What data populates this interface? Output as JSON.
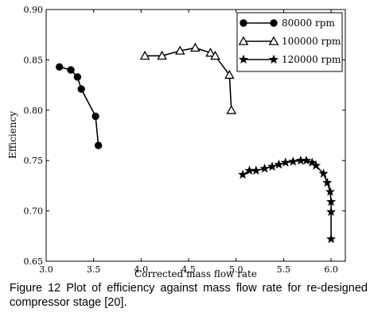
{
  "chart_data": {
    "type": "line",
    "title": "",
    "xlabel": "Corrected mass flow rate",
    "ylabel": "Efficiency",
    "xlim": [
      3.0,
      6.15
    ],
    "ylim": [
      0.65,
      0.9
    ],
    "xticks": [
      "3.0",
      "3.5",
      "4.0",
      "4.5",
      "5.0",
      "5.5",
      "6.0"
    ],
    "yticks": [
      "0.65",
      "0.70",
      "0.75",
      "0.80",
      "0.85",
      "0.90"
    ],
    "grid": false,
    "legend_position": "top-right",
    "series": [
      {
        "name": "80000 rpm",
        "marker": "circle",
        "x": [
          3.14,
          3.26,
          3.33,
          3.37,
          3.52,
          3.55
        ],
        "y": [
          0.843,
          0.84,
          0.833,
          0.821,
          0.794,
          0.765
        ]
      },
      {
        "name": "100000 rpm",
        "marker": "triangle",
        "x": [
          4.04,
          4.22,
          4.41,
          4.57,
          4.73,
          4.78,
          4.93,
          4.95
        ],
        "y": [
          0.854,
          0.854,
          0.859,
          0.862,
          0.857,
          0.854,
          0.835,
          0.8
        ]
      },
      {
        "name": "120000 rpm",
        "marker": "star",
        "x": [
          5.07,
          5.14,
          5.21,
          5.3,
          5.38,
          5.45,
          5.52,
          5.6,
          5.68,
          5.74,
          5.8,
          5.84,
          5.92,
          5.96,
          5.99,
          6.0,
          6.0,
          6.0
        ],
        "y": [
          0.736,
          0.74,
          0.74,
          0.742,
          0.744,
          0.746,
          0.748,
          0.749,
          0.75,
          0.75,
          0.748,
          0.745,
          0.737,
          0.728,
          0.719,
          0.709,
          0.699,
          0.672
        ]
      }
    ]
  },
  "caption": "Figure 12 Plot of efficiency against mass flow rate for re-designed compressor stage [20]."
}
